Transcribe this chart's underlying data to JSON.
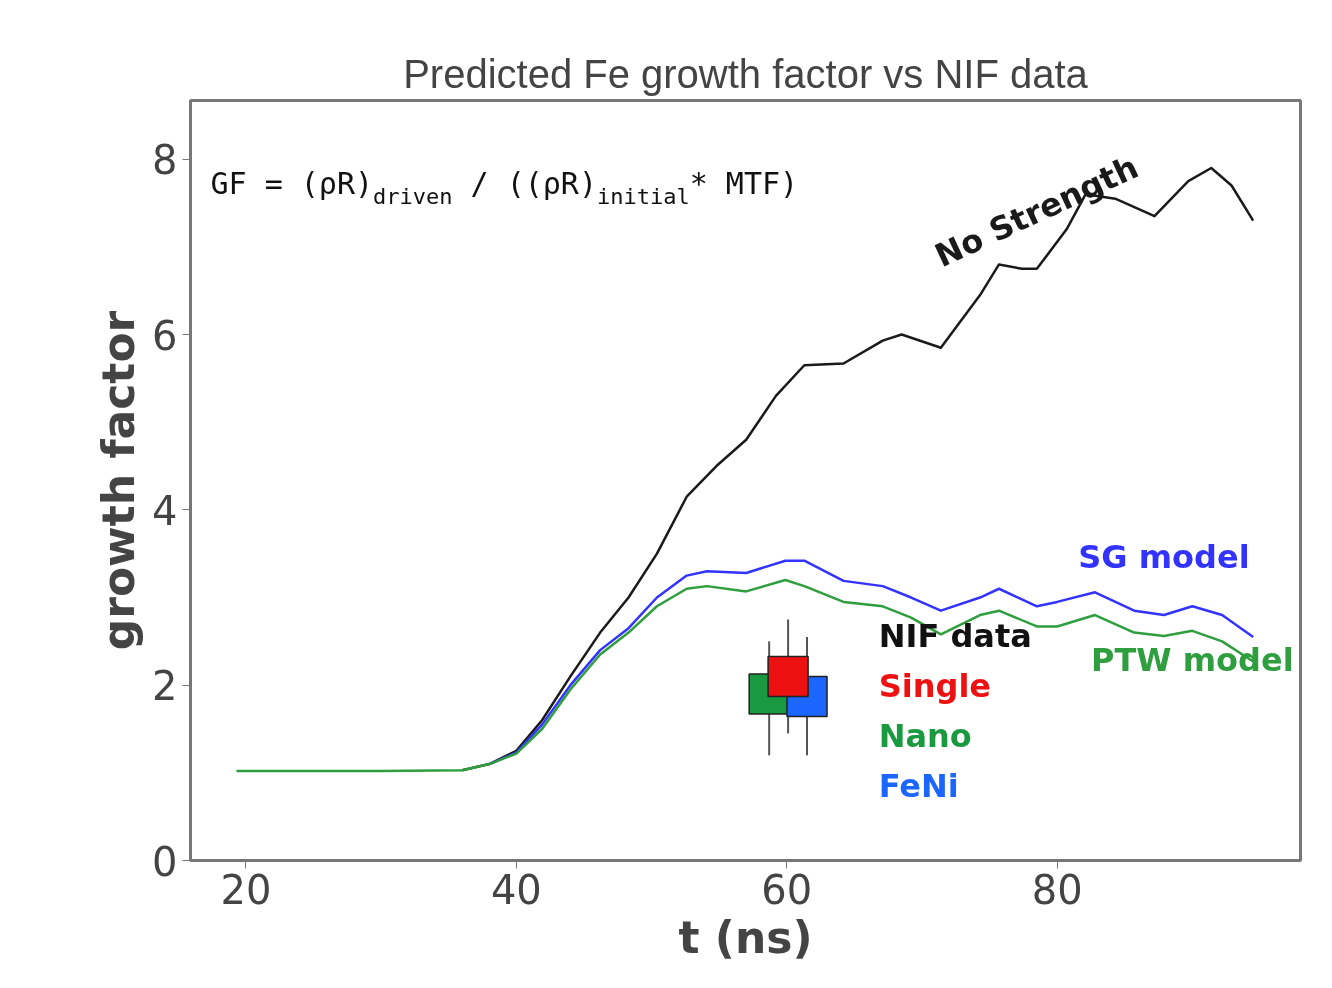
{
  "chart_data": {
    "type": "line",
    "title": "Predicted Fe growth factor vs NIF data",
    "xlabel": "t (ns)",
    "ylabel": "growth factor",
    "xlim": [
      15.9,
      98
    ],
    "ylim": [
      0,
      8.67
    ],
    "xticks": [
      20,
      40,
      60,
      80
    ],
    "yticks": [
      0,
      2,
      4,
      6,
      8
    ],
    "grid": false,
    "legend": "right",
    "legend_title": "NIF data",
    "marker": "none",
    "line_style": "solid",
    "annotations": [
      "GF = (ρR)$_{driven}$ / ((ρR)$_{initial}$* MTF)"
    ],
    "series": [
      {
        "name": "No Strength",
        "color": "#1a1a1a",
        "x": [
          36,
          38,
          40,
          41.9,
          44,
          46.2,
          48.3,
          50.4,
          52.6,
          54.8,
          57,
          59.2,
          61.3,
          64.2,
          67.1,
          68.5,
          71.4,
          74.3,
          75.7,
          77.4,
          78.5,
          80.7,
          82.1,
          84.3,
          87.2,
          89.7,
          91.4,
          92.9,
          94.5
        ],
        "values": [
          1.03,
          1.1,
          1.25,
          1.6,
          2.1,
          2.6,
          3.0,
          3.5,
          4.15,
          4.5,
          4.8,
          5.3,
          5.65,
          5.67,
          5.93,
          6.0,
          5.85,
          6.45,
          6.8,
          6.75,
          6.75,
          7.2,
          7.6,
          7.55,
          7.35,
          7.75,
          7.9,
          7.7,
          7.3
        ]
      },
      {
        "name": "SG model",
        "color": "#3333ff",
        "x": [
          38,
          40,
          41.9,
          44,
          46.2,
          48.3,
          50.4,
          52.6,
          54.1,
          57,
          59.9,
          61.3,
          64.2,
          67.1,
          69.2,
          71.4,
          74.3,
          75.7,
          78.5,
          80,
          82.8,
          85.7,
          87.9,
          90,
          92.2,
          94.5
        ],
        "values": [
          1.1,
          1.23,
          1.55,
          2.0,
          2.4,
          2.65,
          3.0,
          3.25,
          3.3,
          3.28,
          3.42,
          3.42,
          3.19,
          3.13,
          3.0,
          2.85,
          3.0,
          3.1,
          2.9,
          2.95,
          3.06,
          2.85,
          2.8,
          2.9,
          2.8,
          2.55
        ]
      },
      {
        "name": "PTW model",
        "color": "#2e9e3e",
        "x": [
          19.3,
          25,
          30,
          36,
          38,
          40,
          41.9,
          44,
          46.2,
          48.3,
          50.4,
          52.6,
          54.1,
          57,
          59.9,
          61.3,
          64.2,
          67.1,
          69.2,
          71.4,
          74.3,
          75.7,
          78.5,
          80,
          82.8,
          85.7,
          87.9,
          90,
          92.2,
          94.5
        ],
        "values": [
          1.02,
          1.02,
          1.02,
          1.03,
          1.1,
          1.22,
          1.5,
          1.95,
          2.35,
          2.6,
          2.9,
          3.1,
          3.13,
          3.07,
          3.2,
          3.13,
          2.95,
          2.9,
          2.77,
          2.58,
          2.8,
          2.85,
          2.67,
          2.67,
          2.8,
          2.6,
          2.56,
          2.62,
          2.5,
          2.27
        ]
      },
      {
        "name": "Nano",
        "type": "scatter",
        "marker": "square",
        "color": "#1a9a40",
        "x": [
          58.7
        ],
        "values": [
          1.9
        ],
        "errors": [
          [
            1.2,
            2.5
          ]
        ]
      },
      {
        "name": "FeNi",
        "type": "scatter",
        "marker": "square",
        "color": "#1a66ff",
        "x": [
          61.5
        ],
        "values": [
          1.87
        ],
        "errors": [
          [
            1.2,
            2.55
          ]
        ]
      },
      {
        "name": "Single",
        "type": "scatter",
        "marker": "square",
        "color": "#ee1111",
        "x": [
          60.1
        ],
        "values": [
          2.1
        ],
        "errors": [
          [
            1.45,
            2.75
          ]
        ]
      }
    ]
  }
}
